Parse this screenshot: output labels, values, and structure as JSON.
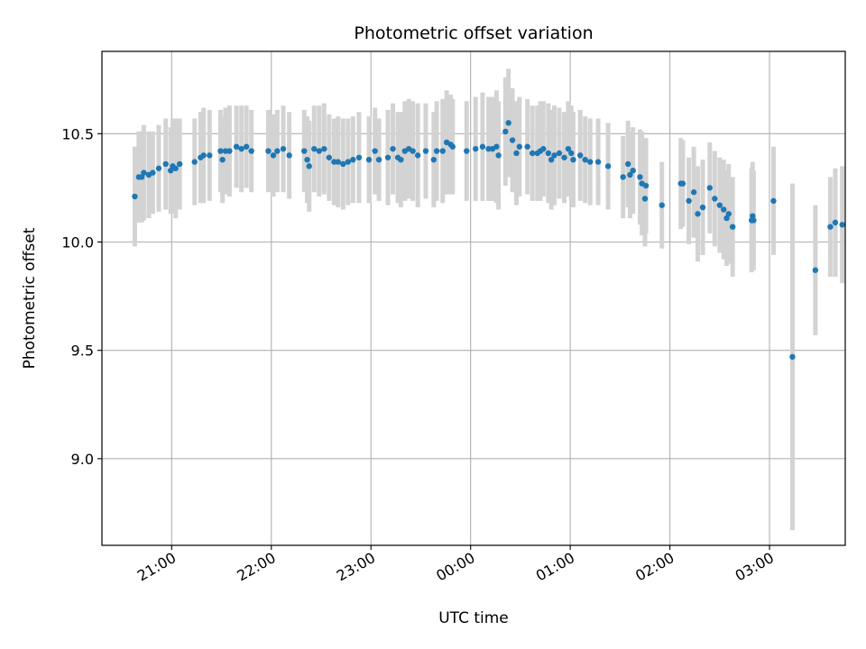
{
  "chart_data": {
    "type": "scatter",
    "title": "Photometric offset variation",
    "xlabel": "UTC time",
    "ylabel": "Photometric offset",
    "x_unit": "hours since 00:00 UTC",
    "x_tick_values": [
      -3,
      -2,
      -1,
      0,
      1,
      2,
      3
    ],
    "x_tick_labels": [
      "21:00",
      "22:00",
      "23:00",
      "00:00",
      "01:00",
      "02:00",
      "03:00"
    ],
    "xlim": [
      -3.7,
      3.76
    ],
    "y_tick_values": [
      9.0,
      9.5,
      10.0,
      10.5
    ],
    "y_tick_labels": [
      "9.0",
      "9.5",
      "10.0",
      "10.5"
    ],
    "ylim": [
      8.6,
      10.88
    ],
    "grid": true,
    "colors": {
      "point": "#1f77b4",
      "errorbar": "#d3d3d3",
      "grid": "#b0b0b0"
    },
    "points": [
      [
        -3.37,
        10.21,
        0.23
      ],
      [
        -3.33,
        10.3,
        0.21
      ],
      [
        -3.3,
        10.3,
        0.21
      ],
      [
        -3.28,
        10.32,
        0.22
      ],
      [
        -3.23,
        10.31,
        0.2
      ],
      [
        -3.19,
        10.32,
        0.19
      ],
      [
        -3.13,
        10.34,
        0.2
      ],
      [
        -3.06,
        10.36,
        0.21
      ],
      [
        -3.01,
        10.33,
        0.2
      ],
      [
        -2.99,
        10.35,
        0.22
      ],
      [
        -2.96,
        10.34,
        0.23
      ],
      [
        -2.92,
        10.36,
        0.21
      ],
      [
        -2.77,
        10.37,
        0.2
      ],
      [
        -2.71,
        10.39,
        0.21
      ],
      [
        -2.68,
        10.4,
        0.22
      ],
      [
        -2.62,
        10.4,
        0.21
      ],
      [
        -2.51,
        10.42,
        0.19
      ],
      [
        -2.49,
        10.38,
        0.2
      ],
      [
        -2.46,
        10.42,
        0.2
      ],
      [
        -2.42,
        10.42,
        0.21
      ],
      [
        -2.35,
        10.44,
        0.19
      ],
      [
        -2.3,
        10.43,
        0.2
      ],
      [
        -2.25,
        10.44,
        0.19
      ],
      [
        -2.2,
        10.42,
        0.19
      ],
      [
        -2.03,
        10.42,
        0.19
      ],
      [
        -1.98,
        10.4,
        0.19
      ],
      [
        -1.94,
        10.42,
        0.19
      ],
      [
        -1.88,
        10.43,
        0.2
      ],
      [
        -1.82,
        10.4,
        0.2
      ],
      [
        -1.67,
        10.42,
        0.19
      ],
      [
        -1.64,
        10.38,
        0.2
      ],
      [
        -1.62,
        10.35,
        0.21
      ],
      [
        -1.57,
        10.43,
        0.2
      ],
      [
        -1.52,
        10.42,
        0.21
      ],
      [
        -1.47,
        10.43,
        0.21
      ],
      [
        -1.42,
        10.39,
        0.2
      ],
      [
        -1.37,
        10.37,
        0.2
      ],
      [
        -1.33,
        10.37,
        0.21
      ],
      [
        -1.28,
        10.36,
        0.21
      ],
      [
        -1.23,
        10.37,
        0.2
      ],
      [
        -1.18,
        10.38,
        0.2
      ],
      [
        -1.12,
        10.39,
        0.21
      ],
      [
        -1.02,
        10.38,
        0.2
      ],
      [
        -0.96,
        10.42,
        0.2
      ],
      [
        -0.92,
        10.38,
        0.19
      ],
      [
        -0.83,
        10.39,
        0.22
      ],
      [
        -0.78,
        10.43,
        0.21
      ],
      [
        -0.73,
        10.39,
        0.21
      ],
      [
        -0.7,
        10.38,
        0.22
      ],
      [
        -0.66,
        10.42,
        0.23
      ],
      [
        -0.62,
        10.43,
        0.23
      ],
      [
        -0.58,
        10.42,
        0.23
      ],
      [
        -0.53,
        10.4,
        0.24
      ],
      [
        -0.45,
        10.42,
        0.22
      ],
      [
        -0.37,
        10.38,
        0.22
      ],
      [
        -0.34,
        10.42,
        0.23
      ],
      [
        -0.28,
        10.42,
        0.24
      ],
      [
        -0.24,
        10.46,
        0.24
      ],
      [
        -0.2,
        10.45,
        0.23
      ],
      [
        -0.18,
        10.44,
        0.22
      ],
      [
        -0.04,
        10.42,
        0.23
      ],
      [
        0.05,
        10.43,
        0.24
      ],
      [
        0.12,
        10.44,
        0.25
      ],
      [
        0.18,
        10.43,
        0.24
      ],
      [
        0.22,
        10.43,
        0.24
      ],
      [
        0.26,
        10.44,
        0.26
      ],
      [
        0.28,
        10.4,
        0.25
      ],
      [
        0.35,
        10.51,
        0.25
      ],
      [
        0.38,
        10.55,
        0.25
      ],
      [
        0.42,
        10.47,
        0.24
      ],
      [
        0.46,
        10.41,
        0.24
      ],
      [
        0.49,
        10.44,
        0.23
      ],
      [
        0.57,
        10.44,
        0.22
      ],
      [
        0.62,
        10.41,
        0.22
      ],
      [
        0.67,
        10.41,
        0.22
      ],
      [
        0.7,
        10.42,
        0.23
      ],
      [
        0.73,
        10.43,
        0.22
      ],
      [
        0.78,
        10.41,
        0.23
      ],
      [
        0.81,
        10.38,
        0.23
      ],
      [
        0.84,
        10.4,
        0.23
      ],
      [
        0.89,
        10.41,
        0.21
      ],
      [
        0.94,
        10.39,
        0.21
      ],
      [
        0.98,
        10.43,
        0.22
      ],
      [
        1.01,
        10.41,
        0.22
      ],
      [
        1.03,
        10.38,
        0.22
      ],
      [
        1.1,
        10.4,
        0.21
      ],
      [
        1.15,
        10.38,
        0.2
      ],
      [
        1.2,
        10.37,
        0.2
      ],
      [
        1.28,
        10.37,
        0.2
      ],
      [
        1.38,
        10.35,
        0.2
      ],
      [
        1.53,
        10.3,
        0.19
      ],
      [
        1.58,
        10.36,
        0.2
      ],
      [
        1.6,
        10.31,
        0.2
      ],
      [
        1.63,
        10.33,
        0.2
      ],
      [
        1.7,
        10.3,
        0.22
      ],
      [
        1.72,
        10.27,
        0.24
      ],
      [
        1.75,
        10.2,
        0.22
      ],
      [
        1.76,
        10.26,
        0.22
      ],
      [
        1.92,
        10.17,
        0.2
      ],
      [
        2.11,
        10.27,
        0.21
      ],
      [
        2.13,
        10.27,
        0.2
      ],
      [
        2.19,
        10.19,
        0.2
      ],
      [
        2.24,
        10.23,
        0.21
      ],
      [
        2.28,
        10.13,
        0.22
      ],
      [
        2.33,
        10.16,
        0.22
      ],
      [
        2.4,
        10.25,
        0.21
      ],
      [
        2.45,
        10.2,
        0.22
      ],
      [
        2.5,
        10.17,
        0.22
      ],
      [
        2.54,
        10.15,
        0.23
      ],
      [
        2.57,
        10.11,
        0.22
      ],
      [
        2.59,
        10.13,
        0.23
      ],
      [
        2.63,
        10.07,
        0.23
      ],
      [
        2.82,
        10.1,
        0.24
      ],
      [
        2.83,
        10.12,
        0.25
      ],
      [
        2.84,
        10.1,
        0.23
      ],
      [
        3.04,
        10.19,
        0.25
      ],
      [
        3.23,
        9.47,
        0.8
      ],
      [
        3.46,
        9.87,
        0.3
      ],
      [
        3.61,
        10.07,
        0.23
      ],
      [
        3.66,
        10.09,
        0.25
      ],
      [
        3.73,
        10.08,
        0.27
      ]
    ]
  }
}
